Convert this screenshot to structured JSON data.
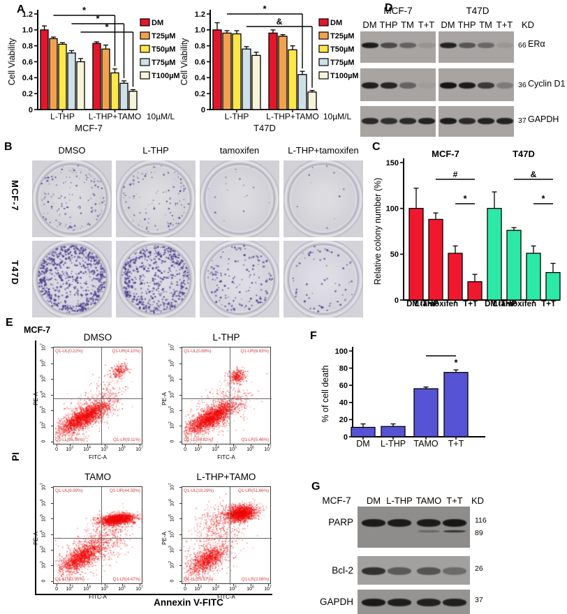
{
  "panel_labels": {
    "A": "A",
    "B": "B",
    "C": "C",
    "D": "D",
    "E": "E",
    "F": "F",
    "G": "G"
  },
  "colors": {
    "dm": "#e3172c",
    "t25": "#f2a24e",
    "t50": "#ffe74a",
    "t75": "#cfe0e8",
    "t100": "#f7f4d9",
    "c_red": "#f0182e",
    "c_green": "#2de9a7",
    "f_blue": "#5653d4",
    "scatter": "#ef0808",
    "quad_label": "#d94545",
    "colony": "#4a3d8f"
  },
  "chart_data": [
    {
      "id": "a1",
      "type": "bar",
      "panel": "A",
      "cell_line": "MCF-7",
      "ylabel": "Cell Viability",
      "ylim": [
        0,
        1.2
      ],
      "yticks": [
        "0",
        "0.2",
        "0.4",
        "0.6",
        "0.8",
        "1.0",
        "1.2"
      ],
      "unit_label": "10µM/L",
      "legend": [
        {
          "label": "DM",
          "color_key": "dm"
        },
        {
          "label": "T25µM",
          "color_key": "t25"
        },
        {
          "label": "T50µM",
          "color_key": "t50"
        },
        {
          "label": "T75µM",
          "color_key": "t75"
        },
        {
          "label": "T100µM",
          "color_key": "t100"
        }
      ],
      "groups": [
        {
          "label": "L-THP",
          "values": [
            1.0,
            0.89,
            0.82,
            0.71,
            0.6
          ],
          "errors": [
            0.05,
            0.02,
            0.02,
            0.03,
            0.04
          ]
        },
        {
          "label": "L-THP+TAMO",
          "values": [
            0.83,
            0.76,
            0.46,
            0.33,
            0.23
          ],
          "errors": [
            0.02,
            0.05,
            0.05,
            0.03,
            0.02
          ]
        }
      ],
      "significance": [
        {
          "a": [
            0,
            1
          ],
          "b": [
            1,
            2
          ],
          "label": "*",
          "lvl": 0
        },
        {
          "a": [
            0,
            3
          ],
          "b": [
            1,
            3
          ],
          "label": "*",
          "lvl": 1
        },
        {
          "a": [
            0,
            4
          ],
          "b": [
            1,
            4
          ],
          "label": "*",
          "lvl": 2
        }
      ]
    },
    {
      "id": "a2",
      "type": "bar",
      "panel": "A",
      "cell_line": "T47D",
      "ylabel": "Cell Viability",
      "ylim": [
        0,
        1.2
      ],
      "yticks": [
        "0",
        "0.2",
        "0.4",
        "0.6",
        "0.8",
        "1.0",
        "1.2"
      ],
      "unit_label": "10µM/L",
      "legend": [
        {
          "label": "DM",
          "color_key": "dm"
        },
        {
          "label": "T25µM",
          "color_key": "t25"
        },
        {
          "label": "T50µM",
          "color_key": "t50"
        },
        {
          "label": "T75µM",
          "color_key": "t75"
        },
        {
          "label": "T100µM",
          "color_key": "t100"
        }
      ],
      "groups": [
        {
          "label": "L-THP",
          "values": [
            1.0,
            0.96,
            0.95,
            0.76,
            0.68
          ],
          "errors": [
            0.09,
            0.03,
            0.04,
            0.03,
            0.04
          ]
        },
        {
          "label": "L-THP+TAMO",
          "values": [
            0.96,
            0.92,
            0.75,
            0.44,
            0.22
          ],
          "errors": [
            0.04,
            0.02,
            0.05,
            0.04,
            0.02
          ]
        }
      ],
      "significance": [
        {
          "a": [
            0,
            1
          ],
          "b": [
            1,
            3
          ],
          "label": "*",
          "lvl": 0
        },
        {
          "a": [
            0,
            3
          ],
          "b": [
            1,
            4
          ],
          "label": "&",
          "lvl": 1
        }
      ]
    },
    {
      "id": "c",
      "type": "bar",
      "panel": "C",
      "ylabel": "Relative colony number (%)",
      "ylim": [
        0,
        150
      ],
      "yticks": [
        "0",
        "50",
        "100",
        "150"
      ],
      "categories": [
        "DM",
        "L-THP",
        "tamoxifen",
        "T+T"
      ],
      "groups": [
        {
          "label": "MCF-7",
          "color_key": "c_red",
          "values": [
            100,
            88,
            51,
            20
          ],
          "errors": [
            22,
            7,
            8,
            8
          ]
        },
        {
          "label": "T47D",
          "color_key": "c_green",
          "values": [
            100,
            76,
            51,
            30
          ],
          "errors": [
            18,
            3,
            8,
            10
          ]
        }
      ],
      "significance": [
        {
          "a": [
            0,
            1
          ],
          "b": [
            0,
            3
          ],
          "label": "#",
          "lvl": 0
        },
        {
          "a": [
            0,
            2
          ],
          "b": [
            0,
            3
          ],
          "label": "*",
          "lvl": 1
        },
        {
          "a": [
            1,
            1
          ],
          "b": [
            1,
            3
          ],
          "label": "&",
          "lvl": 0
        },
        {
          "a": [
            1,
            2
          ],
          "b": [
            1,
            3
          ],
          "label": "*",
          "lvl": 1
        }
      ]
    },
    {
      "id": "f",
      "type": "bar",
      "panel": "F",
      "ylabel": "% of cell death",
      "ylim": [
        0,
        100
      ],
      "yticks": [
        "0",
        "20",
        "40",
        "60",
        "80",
        "100"
      ],
      "categories": [
        "DM",
        "L-THP",
        "TAMO",
        "T+T"
      ],
      "groups": [
        {
          "color_key": "f_blue",
          "values": [
            11,
            12,
            56,
            75
          ],
          "errors": [
            4,
            3,
            2,
            3
          ]
        }
      ],
      "significance": [
        {
          "a": [
            0,
            2
          ],
          "b": [
            0,
            3
          ],
          "label": "*",
          "lvl": 0,
          "star_on_bar": true
        }
      ]
    }
  ],
  "colony": {
    "col_headers": [
      "DMSO",
      "L-THP",
      "tamoxifen",
      "L-THP+tamoxifen"
    ],
    "row_headers": [
      "MCF-7",
      "T47D"
    ],
    "counts": [
      [
        150,
        115,
        18,
        10
      ],
      [
        700,
        560,
        140,
        60
      ]
    ]
  },
  "blot_D": {
    "col_titles": [
      "MCF-7",
      "T47D"
    ],
    "lane_labels": [
      [
        "DM",
        "THP",
        "TM",
        "T+T"
      ],
      [
        "DM",
        "THP",
        "TM",
        "T+T"
      ]
    ],
    "kd_label": "KD",
    "rows": [
      {
        "protein": "ERα",
        "mw": "66",
        "bands": [
          [
            0.95,
            0.62,
            0.45,
            0.1
          ],
          [
            0.9,
            0.55,
            0.42,
            0.08
          ]
        ]
      },
      {
        "protein": "Cyclin D1",
        "mw": "36",
        "bands": [
          [
            0.92,
            0.88,
            0.45,
            0.04
          ],
          [
            1.0,
            0.95,
            0.75,
            0.28
          ]
        ]
      },
      {
        "protein": "GAPDH",
        "mw": "37",
        "bands": [
          [
            0.85,
            0.8,
            0.85,
            0.9
          ],
          [
            0.95,
            0.85,
            0.9,
            0.9
          ]
        ]
      }
    ]
  },
  "flow": {
    "cell_line": "MCF-7",
    "y_axis_name": "PI",
    "x_axis_name": "Annexin V-FITC",
    "plot_xlabel": "FITC-A",
    "plot_ylabel": "PE-A",
    "xticks": [
      "0",
      "10^3",
      "10^4",
      "10^5",
      "10^6",
      "10^7"
    ],
    "yticks": [
      "0",
      "10^2",
      "10^3",
      "10^4",
      "10^5",
      "10^6",
      "10^7"
    ],
    "plots": [
      {
        "title": "DMSO",
        "ul": "Q1-UL(0.22%)",
        "ur": "Q1-UR(4.10%)",
        "ll": "Q1-LL(86.56%)",
        "lr": "Q1-LR(9.11%)",
        "clusters": [
          [
            0.34,
            0.71,
            0.155,
            0.045,
            -27,
            2200
          ],
          [
            0.34,
            0.69,
            0.22,
            0.1,
            -27,
            420
          ],
          [
            0.73,
            0.235,
            0.055,
            0.038,
            -25,
            240
          ],
          [
            0.58,
            0.46,
            0.11,
            0.09,
            -30,
            110
          ]
        ]
      },
      {
        "title": "L-THP",
        "ul": "Q1-UL(0.89%)",
        "ur": "Q1-UR(6.83%)",
        "ll": "Q1-LL(86.82%)",
        "lr": "Q1-LR(5.46%)",
        "clusters": [
          [
            0.33,
            0.71,
            0.155,
            0.045,
            -27,
            2200
          ],
          [
            0.33,
            0.69,
            0.22,
            0.1,
            -27,
            420
          ],
          [
            0.615,
            0.29,
            0.048,
            0.032,
            -20,
            300
          ],
          [
            0.55,
            0.47,
            0.11,
            0.09,
            -30,
            100
          ]
        ]
      },
      {
        "title": "TAMO",
        "ul": "Q1-UL(6.99%)",
        "ur": "Q1-UR(44.59%)",
        "ll": "Q1-LL(43.95%)",
        "lr": "Q1-LR(4.47%)",
        "clusters": [
          [
            0.3,
            0.72,
            0.13,
            0.05,
            -30,
            1400
          ],
          [
            0.33,
            0.68,
            0.2,
            0.11,
            -30,
            480
          ],
          [
            0.71,
            0.325,
            0.1,
            0.027,
            -5,
            1800
          ],
          [
            0.6,
            0.5,
            0.13,
            0.1,
            -25,
            320
          ]
        ]
      },
      {
        "title": "L-THP+TAMO",
        "ul": "Q1-UL(19.29%)",
        "ur": "Q1-UR(51.66%)",
        "ll": "Q1-LL(26.97%)",
        "lr": "Q1-LR(2.08%)",
        "clusters": [
          [
            0.28,
            0.74,
            0.115,
            0.05,
            -30,
            1000
          ],
          [
            0.31,
            0.68,
            0.2,
            0.12,
            -30,
            480
          ],
          [
            0.655,
            0.265,
            0.082,
            0.04,
            -8,
            1900
          ],
          [
            0.4,
            0.36,
            0.15,
            0.1,
            -15,
            330
          ]
        ]
      }
    ]
  },
  "blot_G": {
    "cell_line": "MCF-7",
    "lanes": [
      "DM",
      "L-THP",
      "TAMO",
      "T+T"
    ],
    "kd_label": "KD",
    "rows": [
      {
        "protein": "PARP",
        "mw": [
          "116",
          "89"
        ],
        "bands": [
          0.95,
          0.95,
          0.95,
          0.98
        ],
        "sub_bands": [
          0,
          0,
          0.35,
          0.8
        ]
      },
      {
        "protein": "Bcl-2",
        "mw": [
          "26"
        ],
        "bands": [
          0.8,
          0.5,
          0.55,
          0.38
        ]
      },
      {
        "protein": "GAPDH",
        "mw": [
          "37"
        ],
        "bands": [
          0.95,
          0.92,
          0.9,
          0.9
        ]
      }
    ]
  }
}
